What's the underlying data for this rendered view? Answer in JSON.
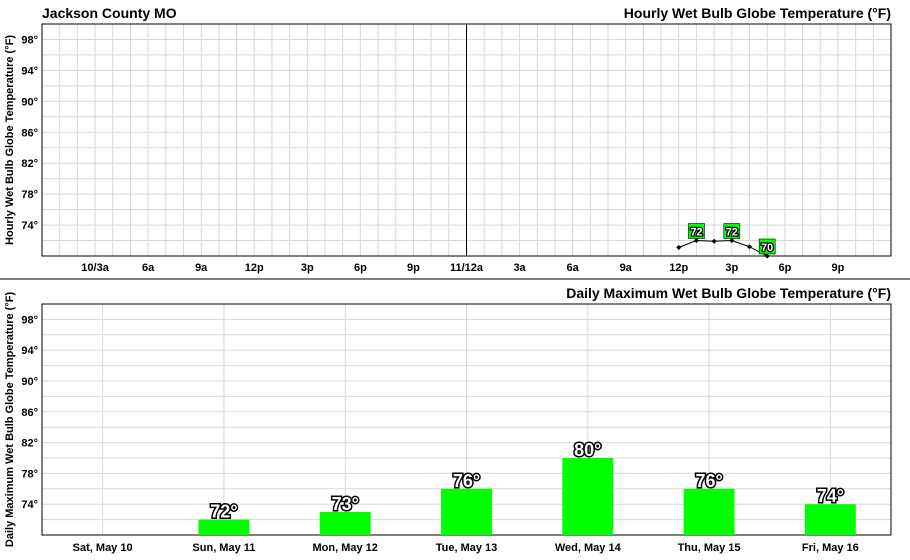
{
  "location": "Jackson County MO",
  "chart_data": [
    {
      "type": "line",
      "title": "Hourly Wet Bulb Globe Temperature (°F)",
      "ylabel": "Hourly Wet Bulb Globe Temperature (°F)",
      "ylim": [
        70,
        100
      ],
      "yticks": [
        74,
        78,
        82,
        86,
        90,
        94,
        98
      ],
      "ytick_labels": [
        "74°",
        "78°",
        "82°",
        "86°",
        "90°",
        "94°",
        "98°"
      ],
      "x_ticks": [
        "10/3a",
        "6a",
        "9a",
        "12p",
        "3p",
        "6p",
        "9p",
        "11/12a",
        "3a",
        "6a",
        "9a",
        "12p",
        "3p",
        "6p",
        "9p"
      ],
      "x_hours": [
        3,
        6,
        9,
        12,
        15,
        18,
        21,
        24,
        27,
        30,
        33,
        36,
        39,
        42,
        45
      ],
      "xlim": [
        0,
        48
      ],
      "day_divider_hour": 24,
      "grid": true,
      "series": [
        {
          "color": "#000000",
          "x": [
            36,
            37,
            38,
            39,
            40,
            41
          ],
          "y": [
            71.1,
            72,
            71.9,
            72,
            71.2,
            70
          ],
          "labels": [
            {
              "x": 37,
              "y": 72,
              "text": "72"
            },
            {
              "x": 39,
              "y": 72,
              "text": "72"
            },
            {
              "x": 41,
              "y": 70,
              "text": "70"
            }
          ]
        }
      ]
    },
    {
      "type": "bar",
      "title": "Daily Maximum Wet Bulb Globe Temperature (°F)",
      "ylabel": "Daily Maximum Wet Bulb Globe Temperature (°F)",
      "ylim": [
        70,
        100
      ],
      "yticks": [
        74,
        78,
        82,
        86,
        90,
        94,
        98
      ],
      "ytick_labels": [
        "74°",
        "78°",
        "82°",
        "86°",
        "90°",
        "94°",
        "98°"
      ],
      "categories": [
        "Sat, May 10",
        "Sun, May 11",
        "Mon, May 12",
        "Tue, May 13",
        "Wed, May 14",
        "Thu, May 15",
        "Fri, May 16"
      ],
      "values": [
        null,
        72,
        73,
        76,
        80,
        76,
        74
      ],
      "value_labels": [
        "",
        "72°",
        "73°",
        "76°",
        "80°",
        "76°",
        "74°"
      ],
      "bar_color": "#00ff00",
      "grid": true
    }
  ]
}
